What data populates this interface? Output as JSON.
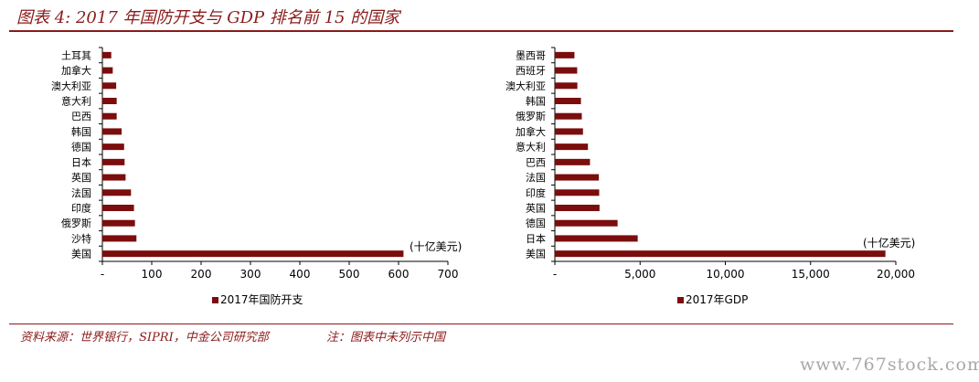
{
  "figure_title": "图表 4: 2017 年国防开支与 GDP 排名前 15 的国家",
  "footer": {
    "source": "资料来源：世界银行，SIPRI，中金公司研究部",
    "note": "注：图表中未列示中国"
  },
  "watermark": "www.767stock.com",
  "colors": {
    "bar": "#7b0d0d",
    "accent": "#8b1a1a"
  },
  "chart_data": [
    {
      "type": "bar",
      "orientation": "horizontal",
      "categories": [
        "土耳其",
        "加拿大",
        "澳大利亚",
        "意大利",
        "巴西",
        "韩国",
        "德国",
        "日本",
        "英国",
        "法国",
        "印度",
        "俄罗斯",
        "沙特",
        "美国"
      ],
      "series": [
        {
          "name": "2017年国防开支",
          "values": [
            18,
            21,
            28,
            29,
            29,
            39,
            44,
            45,
            47,
            58,
            64,
            66,
            69,
            610
          ]
        }
      ],
      "xlim": [
        0,
        700
      ],
      "xticks": [
        0,
        100,
        200,
        300,
        400,
        500,
        600,
        700
      ],
      "xtick_labels": [
        "-",
        "100",
        "200",
        "300",
        "400",
        "500",
        "600",
        "700"
      ],
      "unit_annotation": "(十亿美元)",
      "legend": "bottom"
    },
    {
      "type": "bar",
      "orientation": "horizontal",
      "categories": [
        "墨西哥",
        "西班牙",
        "澳大利亚",
        "韩国",
        "俄罗斯",
        "加拿大",
        "意大利",
        "巴西",
        "法国",
        "印度",
        "英国",
        "德国",
        "日本",
        "美国"
      ],
      "series": [
        {
          "name": "2017年GDP",
          "values": [
            1150,
            1310,
            1320,
            1530,
            1580,
            1650,
            1940,
            2060,
            2580,
            2600,
            2620,
            3680,
            4860,
            19390
          ]
        }
      ],
      "xlim": [
        0,
        20000
      ],
      "xticks": [
        0,
        5000,
        10000,
        15000,
        20000
      ],
      "xtick_labels": [
        "-",
        "5,000",
        "10,000",
        "15,000",
        "20,000"
      ],
      "unit_annotation": "(十亿美元)",
      "legend": "bottom"
    }
  ]
}
